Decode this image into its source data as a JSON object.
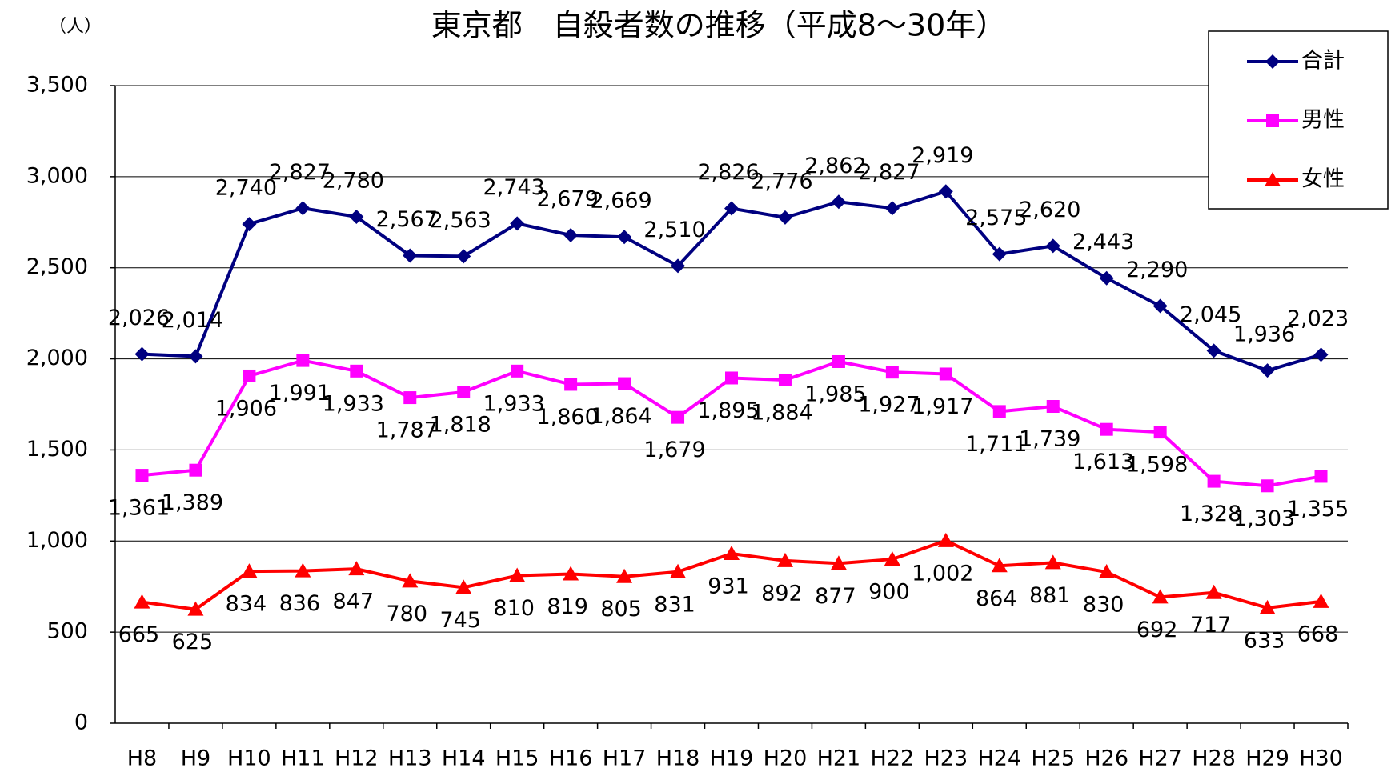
{
  "chart_data": {
    "type": "line",
    "title": "東京都　自殺者数の推移（平成8～30年）",
    "y_label": "（人）",
    "categories": [
      "H8",
      "H9",
      "H10",
      "H11",
      "H12",
      "H13",
      "H14",
      "H15",
      "H16",
      "H17",
      "H18",
      "H19",
      "H20",
      "H21",
      "H22",
      "H23",
      "H24",
      "H25",
      "H26",
      "H27",
      "H28",
      "H29",
      "H30"
    ],
    "series": [
      {
        "name": "合計",
        "color": "#000080",
        "marker": "diamond",
        "label_side": "above",
        "values": [
          2026,
          2014,
          2740,
          2827,
          2780,
          2567,
          2563,
          2743,
          2679,
          2669,
          2510,
          2826,
          2776,
          2862,
          2827,
          2919,
          2575,
          2620,
          2443,
          2290,
          2045,
          1936,
          2023
        ],
        "value_labels": [
          "2,026",
          "2,014",
          "2,740",
          "2,827",
          "2,780",
          "2,567",
          "2,563",
          "2,743",
          "2,679",
          "2,669",
          "2,510",
          "2,826",
          "2,776",
          "2,862",
          "2,827",
          "2,919",
          "2,575",
          "2,620",
          "2,443",
          "2,290",
          "2,045",
          "1,936",
          "2,023"
        ]
      },
      {
        "name": "男性",
        "color": "#ff00ff",
        "marker": "square",
        "label_side": "below",
        "values": [
          1361,
          1389,
          1906,
          1991,
          1933,
          1787,
          1818,
          1933,
          1860,
          1864,
          1679,
          1895,
          1884,
          1985,
          1927,
          1917,
          1711,
          1739,
          1613,
          1598,
          1328,
          1303,
          1355
        ],
        "value_labels": [
          "1,361",
          "1,389",
          "1,906",
          "1,991",
          "1,933",
          "1,787",
          "1,818",
          "1,933",
          "1,860",
          "1,864",
          "1,679",
          "1,895",
          "1,884",
          "1,985",
          "1,927",
          "1,917",
          "1,711",
          "1,739",
          "1,613",
          "1,598",
          "1,328",
          "1,303",
          "1,355"
        ]
      },
      {
        "name": "女性",
        "color": "#ff0000",
        "marker": "triangle",
        "label_side": "below",
        "values": [
          665,
          625,
          834,
          836,
          847,
          780,
          745,
          810,
          819,
          805,
          831,
          931,
          892,
          877,
          900,
          1002,
          864,
          881,
          830,
          692,
          717,
          633,
          668
        ],
        "value_labels": [
          "665",
          "625",
          "834",
          "836",
          "847",
          "780",
          "745",
          "810",
          "819",
          "805",
          "831",
          "931",
          "892",
          "877",
          "900",
          "1,002",
          "864",
          "881",
          "830",
          "692",
          "717",
          "633",
          "668"
        ]
      }
    ],
    "ylim": [
      0,
      3500
    ],
    "yticks": [
      0,
      500,
      {
        "value": 1000,
        "label": "1,000"
      },
      {
        "value": 1500,
        "label": "1,500"
      },
      {
        "value": 2000,
        "label": "2,000"
      },
      {
        "value": 2500,
        "label": "2,500"
      },
      {
        "value": 3000,
        "label": "3,000"
      },
      {
        "value": 3500,
        "label": "3,500"
      }
    ],
    "grid": true,
    "legend": "top-right"
  }
}
